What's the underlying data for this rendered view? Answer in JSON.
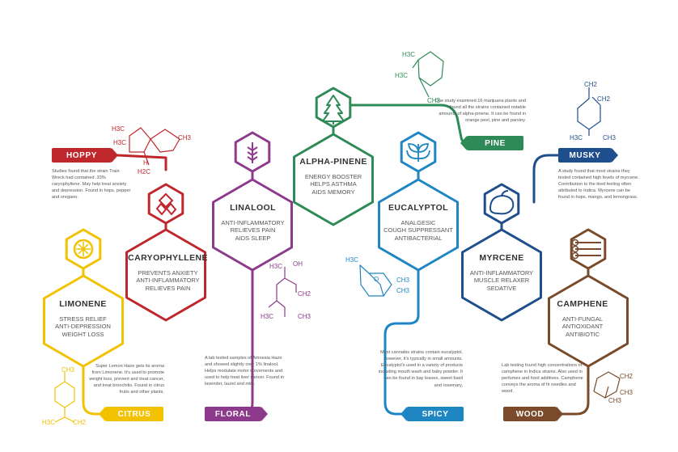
{
  "colors": {
    "caryophyllene": "#c0272d",
    "limonene": "#f2c200",
    "linalool": "#8e3a8c",
    "alpha_pinene": "#2e8b57",
    "eucalyptol": "#1f86c4",
    "myrcene": "#1f4e8c",
    "camphene": "#7a4a2a"
  },
  "terpenes": [
    {
      "key": "caryophyllene",
      "name": "CARYOPHYLLENE",
      "effects": [
        "PREVENTS ANXIETY",
        "ANTI-INFLAMMATORY",
        "RELIEVES PAIN"
      ],
      "icon": "hops-icon",
      "tag": "HOPPY",
      "description": "Studies found that the strain Train Wreck had contained .33% caryophyllene. May help treat anxiety and depression. Found in hops, pepper and oregano."
    },
    {
      "key": "limonene",
      "name": "LIMONENE",
      "effects": [
        "STRESS RELIEF",
        "ANTI-DEPRESSION",
        "WEIGHT LOSS"
      ],
      "icon": "lemon-slice-icon",
      "tag": "CITRUS",
      "description": "Super Lemon Haze gets its aroma from Limonene. It's used to promote weight loss, prevent and treat cancer, and treat bronchitis. Found in citrus fruits and other plants."
    },
    {
      "key": "linalool",
      "name": "LINALOOL",
      "effects": [
        "ANTI-INFLAMMATORY",
        "RELIEVES PAIN",
        "AIDS SLEEP"
      ],
      "icon": "lavender-icon",
      "tag": "FLORAL",
      "description": "A lab tested samples of Amnesia Haze and showed slightly over 1% linalool. Helps modulate motor movements and used to help treat liver cancer. Found in lavender, laurel and mint."
    },
    {
      "key": "alpha_pinene",
      "name": "ALPHA-PINENE",
      "effects": [
        "ENERGY BOOSTER",
        "HELPS ASTHMA",
        "AIDS MEMORY"
      ],
      "icon": "pine-tree-icon",
      "tag": "PINE",
      "description": "One study examined 16 marijuana plants and found all the strains contained notable amounts of alpha-pinene. It can be found in orange peel, pine and parsley."
    },
    {
      "key": "eucalyptol",
      "name": "EUCALYPTOL",
      "effects": [
        "ANALGESIC",
        "COUGH SUPPRESSANT",
        "ANTIBACTERIAL"
      ],
      "icon": "eucalyptus-leaves-icon",
      "tag": "SPICY",
      "description": "Most cannabis strains contain eucalyptol, however, it's typically in small amounts. Eucalyptol's used in a variety of products including mouth wash and baby powder. It can be found in bay leaves, sweet basil and rosemary."
    },
    {
      "key": "myrcene",
      "name": "MYRCENE",
      "effects": [
        "ANTI-INFLAMMATORY",
        "MUSCLE RELAXER",
        "SEDATIVE"
      ],
      "icon": "mango-icon",
      "tag": "MUSKY",
      "description": "A study found that most strains they tested contained high levels of myrcene. Contribution to the tired feeling often attributed to Indica. Myrcene can be found in hops, mango, and lemongrass."
    },
    {
      "key": "camphene",
      "name": "CAMPHENE",
      "effects": [
        "ANTI-FUNGAL",
        "ANTIOXIDANT",
        "ANTIBIOTIC"
      ],
      "icon": "logs-icon",
      "tag": "WOOD",
      "description": "Lab testing found high concentrations of camphene in Indica strains. Also used in perfumes and food additives. Camphene conveys the aroma of fir needles and wood."
    }
  ],
  "chemistry": {
    "caryophyllene": [
      "H3C",
      "H3C",
      "CH3",
      "H2C",
      "H"
    ],
    "limonene": [
      "CH3",
      "H3C",
      "CH2"
    ],
    "linalool": [
      "H3C",
      "OH",
      "CH2",
      "H3C",
      "CH3"
    ],
    "alpha_pinene": [
      "H3C",
      "H3C",
      "CH3"
    ],
    "eucalyptol": [
      "H3C",
      "CH3",
      "CH3",
      "O"
    ],
    "myrcene": [
      "CH2",
      "CH2",
      "H3C",
      "CH3"
    ],
    "camphene": [
      "CH2",
      "CH3",
      "CH3"
    ]
  }
}
